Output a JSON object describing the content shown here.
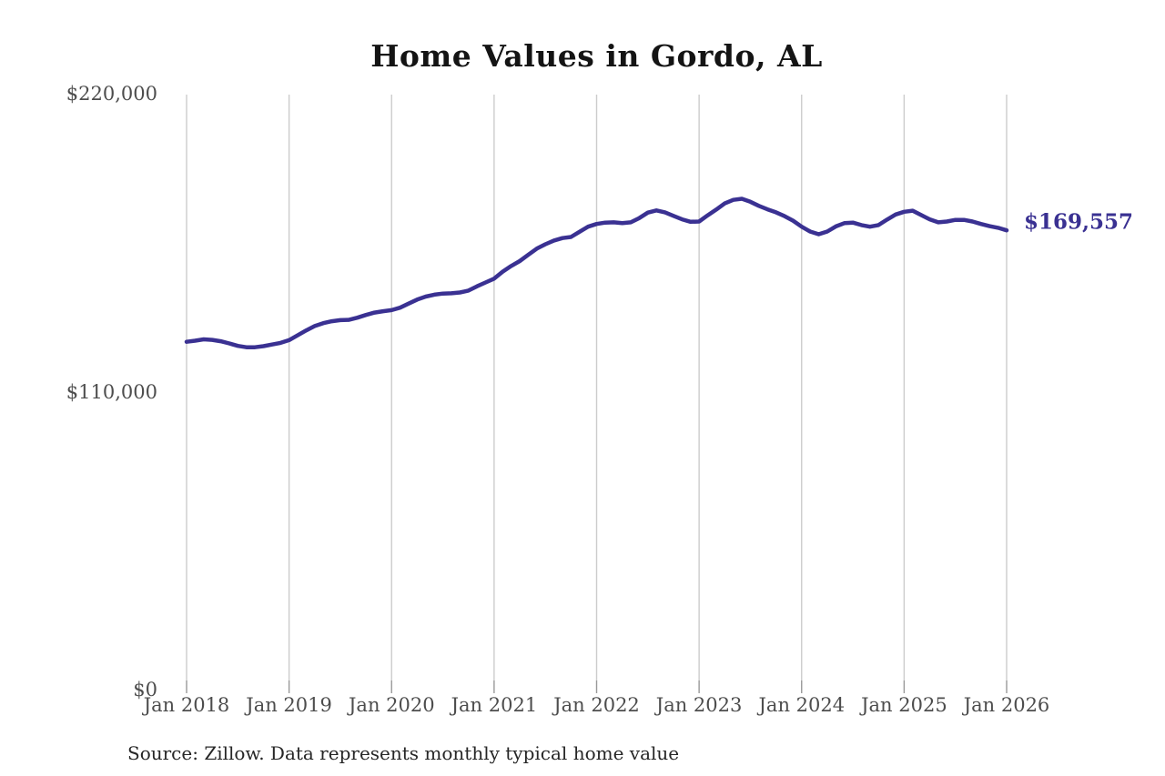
{
  "chart": {
    "title": "Home Values in Gordo, AL",
    "end_label": "$169,557",
    "source": "Source: Zillow. Data represents monthly typical home value"
  },
  "colors": {
    "line": "#3a3192",
    "end_label": "#3a3192",
    "gridline": "#cccccc",
    "tick": "#999999",
    "axis_text": "#4d4d4d",
    "title_text": "#141414",
    "background": "#ffffff"
  },
  "chart_data": {
    "type": "line",
    "title": "Home Values in Gordo, AL",
    "xlabel": "",
    "ylabel": "",
    "x_start": "Jan 2018",
    "x_end": "Jan 2026",
    "frequency": "monthly",
    "x_tick_labels": [
      "Jan 2018",
      "Jan 2019",
      "Jan 2020",
      "Jan 2021",
      "Jan 2022",
      "Jan 2023",
      "Jan 2024",
      "Jan 2025",
      "Jan 2026"
    ],
    "y_ticks": [
      {
        "label": "$0",
        "value": 0
      },
      {
        "label": "$110,000",
        "value": 110000
      },
      {
        "label": "$220,000",
        "value": 220000
      }
    ],
    "ylim": [
      0,
      220000
    ],
    "grid": "vertical-only",
    "legend": "none",
    "final_value": 169557,
    "final_value_label": "$169,557",
    "series": [
      {
        "name": "Typical home value",
        "values": [
          128400,
          128800,
          129300,
          129100,
          128600,
          127800,
          126900,
          126400,
          126400,
          126800,
          127400,
          128000,
          129000,
          130800,
          132600,
          134200,
          135300,
          136000,
          136400,
          136500,
          137300,
          138300,
          139200,
          139700,
          140100,
          141000,
          142500,
          144000,
          145100,
          145800,
          146200,
          146300,
          146600,
          147300,
          148900,
          150300,
          151700,
          154300,
          156400,
          158200,
          160500,
          162800,
          164400,
          165800,
          166700,
          167100,
          169000,
          170900,
          171900,
          172400,
          172500,
          172200,
          172500,
          174100,
          176100,
          176900,
          176200,
          174900,
          173600,
          172700,
          172800,
          175100,
          177200,
          179500,
          180800,
          181200,
          180100,
          178600,
          177300,
          176200,
          174800,
          173100,
          170900,
          169100,
          168100,
          169100,
          171000,
          172200,
          172400,
          171500,
          170900,
          171500,
          173500,
          175400,
          176400,
          176800,
          175200,
          173600,
          172500,
          172800,
          173400,
          173400,
          172800,
          171900,
          171100,
          170500,
          169557
        ]
      }
    ]
  }
}
